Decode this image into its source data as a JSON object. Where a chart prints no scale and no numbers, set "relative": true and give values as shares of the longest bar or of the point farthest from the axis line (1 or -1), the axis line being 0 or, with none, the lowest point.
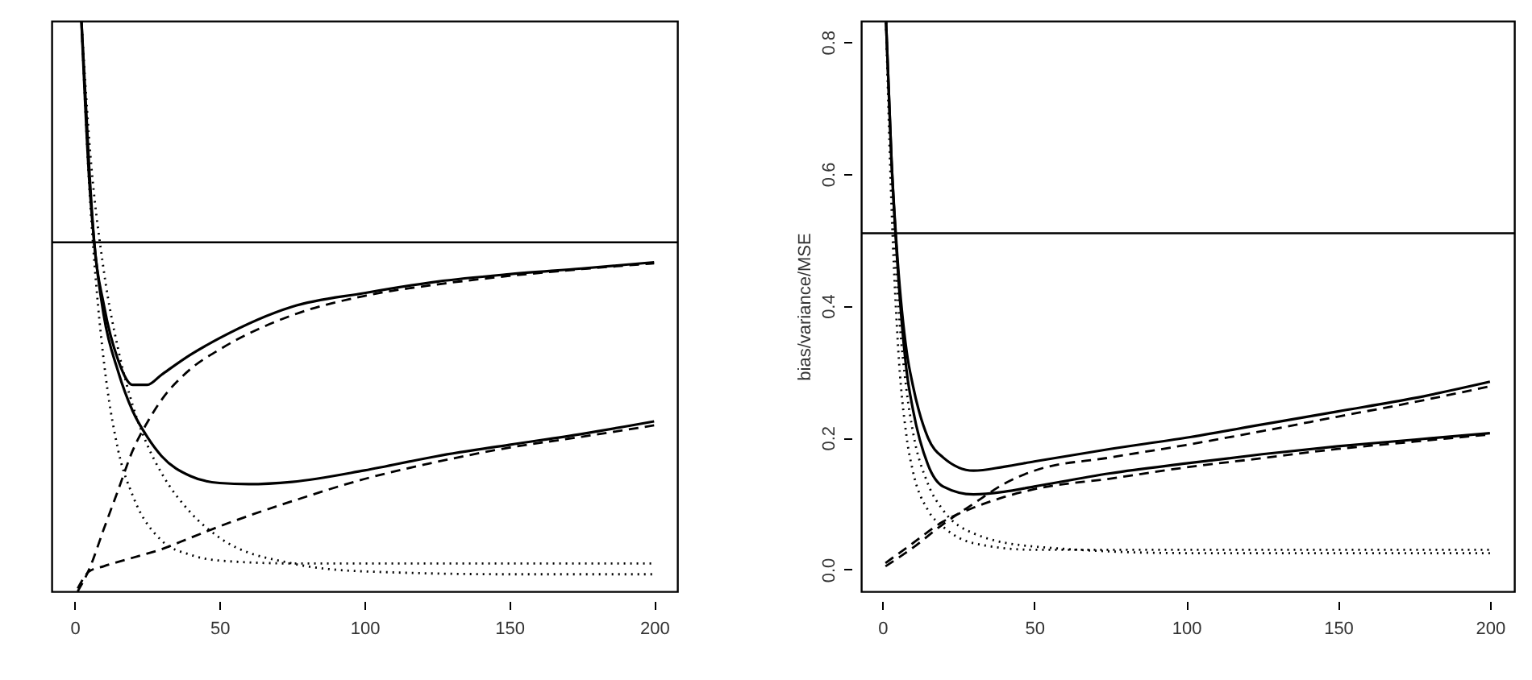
{
  "chart_data": [
    {
      "type": "line",
      "relative": true,
      "xlim": [
        -8,
        208
      ],
      "xticks": [
        0,
        50,
        100,
        150,
        200
      ],
      "series": [
        {
          "color": "#000000",
          "line_style": "solid",
          "x": [
            2.3,
            5,
            6.7,
            10,
            15,
            20,
            25,
            30,
            40,
            50,
            75,
            100,
            125,
            150,
            175,
            200
          ],
          "values": [
            1.0,
            0.74,
            0.612,
            0.503,
            0.405,
            0.362,
            0.362,
            0.38,
            0.415,
            0.444,
            0.499,
            0.523,
            0.543,
            0.556,
            0.566,
            0.577
          ]
        },
        {
          "color": "#000000",
          "line_style": "solid",
          "x": [
            2.3,
            5,
            6.7,
            10,
            15,
            20,
            25,
            30,
            40,
            50,
            60,
            75,
            100,
            125,
            150,
            175,
            200
          ],
          "values": [
            1.0,
            0.72,
            0.612,
            0.484,
            0.385,
            0.316,
            0.271,
            0.237,
            0.202,
            0.19,
            0.188,
            0.192,
            0.212,
            0.237,
            0.257,
            0.276,
            0.298
          ]
        },
        {
          "color": "#000000",
          "line_style": "dashed",
          "x": [
            1,
            5,
            10,
            15,
            20,
            25,
            30,
            40,
            50,
            75,
            100,
            125,
            150,
            175,
            200
          ],
          "values": [
            0,
            0.039,
            0.109,
            0.178,
            0.247,
            0.296,
            0.336,
            0.39,
            0.424,
            0.484,
            0.518,
            0.538,
            0.553,
            0.565,
            0.575
          ]
        },
        {
          "color": "#000000",
          "line_style": "dashed",
          "x": [
            1,
            5,
            10,
            20,
            30,
            40,
            50,
            75,
            100,
            125,
            150,
            175,
            200
          ],
          "values": [
            0.005,
            0.035,
            0.044,
            0.059,
            0.074,
            0.094,
            0.114,
            0.158,
            0.197,
            0.227,
            0.252,
            0.271,
            0.291
          ]
        },
        {
          "color": "#000000",
          "line_style": "dotted",
          "x": [
            2.3,
            5,
            8,
            10,
            15,
            20,
            30,
            40,
            50,
            75,
            100,
            150,
            200
          ],
          "values": [
            1.0,
            0.711,
            0.503,
            0.405,
            0.247,
            0.168,
            0.089,
            0.064,
            0.054,
            0.049,
            0.049,
            0.049,
            0.049
          ]
        },
        {
          "color": "#000000",
          "line_style": "dotted",
          "x": [
            2.3,
            5,
            10,
            15,
            20,
            25,
            30,
            40,
            50,
            75,
            100,
            150,
            200
          ],
          "values": [
            1.0,
            0.79,
            0.563,
            0.424,
            0.326,
            0.257,
            0.207,
            0.138,
            0.094,
            0.049,
            0.035,
            0.03,
            0.03
          ]
        }
      ],
      "ref_lines": [
        {
          "axis": "y",
          "value": 0.612,
          "color": "#000000"
        }
      ]
    },
    {
      "type": "line",
      "ylabel": "bias/variance/MSE",
      "xlim": [
        -7,
        208
      ],
      "xticks": [
        0,
        50,
        100,
        150,
        200
      ],
      "ylim": [
        -0.033,
        0.832
      ],
      "yticks": [
        {
          "value": 0,
          "label": "0.0"
        },
        {
          "value": 0.2,
          "label": "0.2"
        },
        {
          "value": 0.4,
          "label": "0.4"
        },
        {
          "value": 0.6,
          "label": "0.6"
        },
        {
          "value": 0.8,
          "label": "0.8"
        }
      ],
      "series": [
        {
          "color": "#000000",
          "line_style": "solid",
          "x": [
            1.2,
            3,
            5,
            8,
            10,
            15,
            20,
            30,
            40,
            50,
            75,
            100,
            125,
            150,
            175,
            200
          ],
          "values": [
            0.83,
            0.62,
            0.47,
            0.33,
            0.28,
            0.2,
            0.17,
            0.15,
            0.156,
            0.164,
            0.183,
            0.2,
            0.22,
            0.24,
            0.26,
            0.285
          ]
        },
        {
          "color": "#000000",
          "line_style": "solid",
          "x": [
            1.2,
            3,
            5,
            8,
            10,
            15,
            20,
            30,
            40,
            50,
            75,
            100,
            125,
            150,
            175,
            200
          ],
          "values": [
            0.83,
            0.62,
            0.46,
            0.3,
            0.244,
            0.159,
            0.126,
            0.114,
            0.118,
            0.126,
            0.146,
            0.161,
            0.175,
            0.187,
            0.197,
            0.207
          ]
        },
        {
          "color": "#000000",
          "line_style": "dashed",
          "x": [
            1,
            10,
            20,
            30,
            40,
            50,
            75,
            100,
            125,
            150,
            175,
            200
          ],
          "values": [
            0.005,
            0.033,
            0.069,
            0.1,
            0.13,
            0.15,
            0.17,
            0.189,
            0.21,
            0.232,
            0.254,
            0.278
          ]
        },
        {
          "color": "#000000",
          "line_style": "dashed",
          "x": [
            1,
            10,
            20,
            30,
            40,
            50,
            75,
            100,
            125,
            150,
            175,
            200
          ],
          "values": [
            0.01,
            0.04,
            0.073,
            0.094,
            0.11,
            0.122,
            0.138,
            0.155,
            0.169,
            0.183,
            0.194,
            0.205
          ]
        },
        {
          "color": "#000000",
          "line_style": "dotted",
          "x": [
            1.2,
            3,
            5,
            8,
            10,
            15,
            20,
            30,
            50,
            100,
            200
          ],
          "values": [
            0.83,
            0.55,
            0.35,
            0.2,
            0.15,
            0.09,
            0.065,
            0.04,
            0.03,
            0.03,
            0.03
          ]
        },
        {
          "color": "#000000",
          "line_style": "dotted",
          "x": [
            1.2,
            3,
            5,
            8,
            10,
            15,
            20,
            30,
            50,
            100,
            200
          ],
          "values": [
            0.83,
            0.6,
            0.42,
            0.27,
            0.21,
            0.13,
            0.09,
            0.055,
            0.035,
            0.025,
            0.025
          ]
        }
      ],
      "ref_lines": [
        {
          "axis": "y",
          "value": 0.51,
          "color": "#000000"
        }
      ]
    }
  ]
}
